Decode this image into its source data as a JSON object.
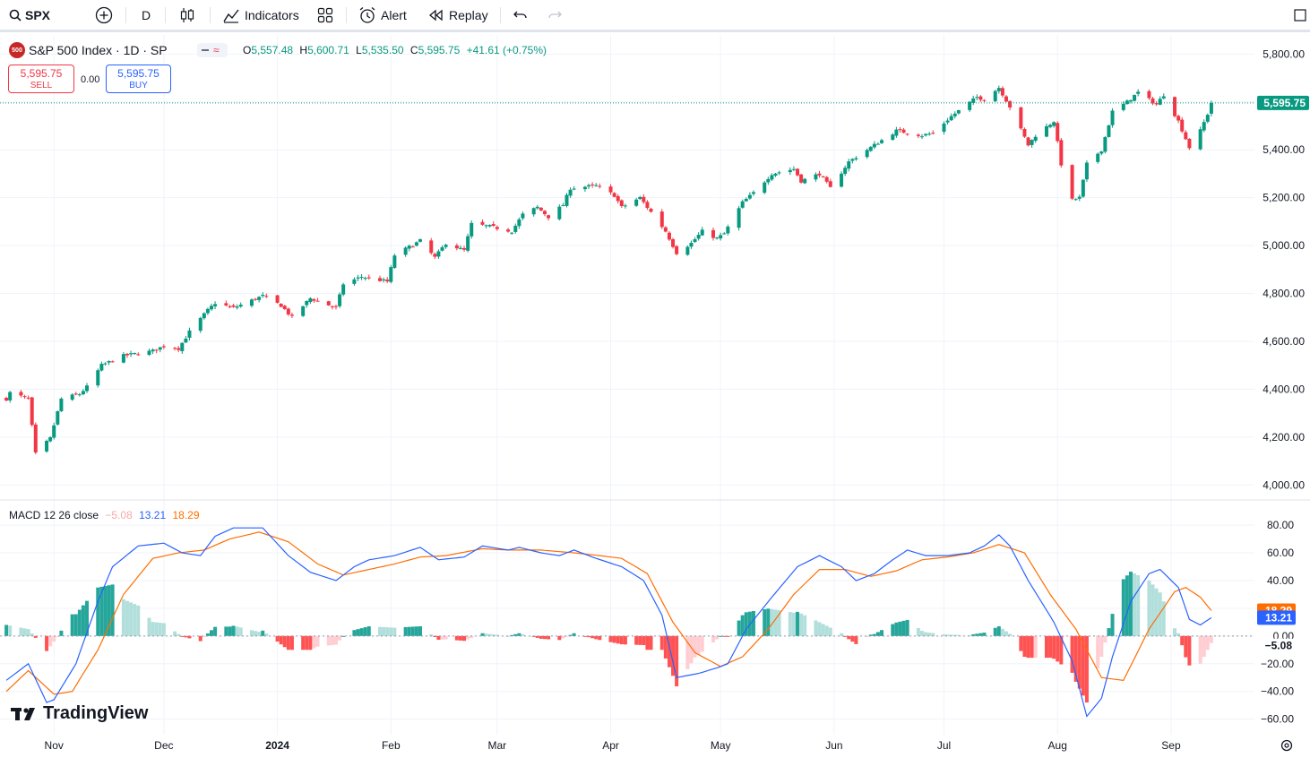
{
  "toolbar": {
    "symbol": "SPX",
    "interval": "D",
    "indicators": "Indicators",
    "alert": "Alert",
    "replay": "Replay"
  },
  "legend": {
    "badge": "500",
    "title": "S&P 500 Index · 1D · SP",
    "o_label": "O",
    "o": "5,557.48",
    "h_label": "H",
    "h": "5,600.71",
    "l_label": "L",
    "l": "5,535.50",
    "c_label": "C",
    "c": "5,595.75",
    "change": "+41.61 (+0.75%)"
  },
  "trade": {
    "sell_price": "5,595.75",
    "sell_label": "SELL",
    "spread": "0.00",
    "buy_price": "5,595.75",
    "buy_label": "BUY"
  },
  "macd_legend": {
    "name": "MACD 12 26 close",
    "hist": "−5.08",
    "macd": "13.21",
    "signal": "18.29"
  },
  "brand": "TradingView",
  "colors": {
    "up": "#089981",
    "down": "#f23645",
    "macd": "#2962ff",
    "signal": "#ff6d00",
    "hist_up_strong": "#26a69a",
    "hist_up_weak": "#b2dfdb",
    "hist_down_strong": "#ff5252",
    "hist_down_weak": "#ffcdd2"
  },
  "chart_data": [
    {
      "type": "candlestick",
      "title": "S&P 500 Index · 1D · SP",
      "y_ticks": [
        "5,800.00",
        "5,600.00",
        "5,400.00",
        "5,200.00",
        "5,000.00",
        "4,800.00",
        "4,600.00",
        "4,400.00",
        "4,200.00",
        "4,000.00"
      ],
      "y_tick_values": [
        5800,
        5600,
        5400,
        5200,
        5000,
        4800,
        4600,
        4400,
        4200,
        4000
      ],
      "ylim": [
        3960,
        5850
      ],
      "x_ticks": [
        "Nov",
        "Dec",
        "2024",
        "Feb",
        "Mar",
        "Apr",
        "May",
        "Jun",
        "Jul",
        "Aug",
        "Sep"
      ],
      "last_price": "5,595.75",
      "last_value": 5595.75,
      "path": [
        [
          "2023-10-19",
          4360
        ],
        [
          "2023-10-20",
          4385
        ],
        [
          "2023-10-25",
          4360
        ],
        [
          "2023-10-27",
          4130
        ],
        [
          "2023-10-31",
          4195
        ],
        [
          "2023-11-03",
          4360
        ],
        [
          "2023-11-08",
          4380
        ],
        [
          "2023-11-10",
          4410
        ],
        [
          "2023-11-14",
          4500
        ],
        [
          "2023-11-20",
          4540
        ],
        [
          "2023-11-28",
          4560
        ],
        [
          "2023-12-01",
          4580
        ],
        [
          "2023-12-05",
          4570
        ],
        [
          "2023-12-08",
          4640
        ],
        [
          "2023-12-13",
          4730
        ],
        [
          "2023-12-15",
          4760
        ],
        [
          "2023-12-20",
          4740
        ],
        [
          "2023-12-28",
          4790
        ],
        [
          "2024-01-02",
          4750
        ],
        [
          "2024-01-05",
          4700
        ],
        [
          "2024-01-10",
          4780
        ],
        [
          "2024-01-17",
          4740
        ],
        [
          "2024-01-19",
          4840
        ],
        [
          "2024-01-24",
          4870
        ],
        [
          "2024-01-31",
          4850
        ],
        [
          "2024-02-02",
          4960
        ],
        [
          "2024-02-09",
          5020
        ],
        [
          "2024-02-13",
          4950
        ],
        [
          "2024-02-16",
          5010
        ],
        [
          "2024-02-21",
          4980
        ],
        [
          "2024-02-23",
          5090
        ],
        [
          "2024-02-28",
          5080
        ],
        [
          "2024-03-05",
          5060
        ],
        [
          "2024-03-08",
          5130
        ],
        [
          "2024-03-12",
          5160
        ],
        [
          "2024-03-15",
          5120
        ],
        [
          "2024-03-19",
          5170
        ],
        [
          "2024-03-21",
          5240
        ],
        [
          "2024-03-28",
          5250
        ],
        [
          "2024-04-02",
          5210
        ],
        [
          "2024-04-04",
          5160
        ],
        [
          "2024-04-09",
          5200
        ],
        [
          "2024-04-12",
          5140
        ],
        [
          "2024-04-16",
          5060
        ],
        [
          "2024-04-19",
          4970
        ],
        [
          "2024-04-23",
          5010
        ],
        [
          "2024-04-26",
          5060
        ],
        [
          "2024-04-30",
          5030
        ],
        [
          "2024-05-02",
          5050
        ],
        [
          "2024-05-07",
          5180
        ],
        [
          "2024-05-10",
          5220
        ],
        [
          "2024-05-15",
          5300
        ],
        [
          "2024-05-21",
          5320
        ],
        [
          "2024-05-23",
          5270
        ],
        [
          "2024-05-28",
          5300
        ],
        [
          "2024-05-31",
          5240
        ],
        [
          "2024-06-05",
          5350
        ],
        [
          "2024-06-12",
          5420
        ],
        [
          "2024-06-14",
          5440
        ],
        [
          "2024-06-18",
          5480
        ],
        [
          "2024-06-25",
          5460
        ],
        [
          "2024-06-28",
          5470
        ],
        [
          "2024-07-03",
          5540
        ],
        [
          "2024-07-10",
          5620
        ],
        [
          "2024-07-12",
          5610
        ],
        [
          "2024-07-16",
          5660
        ],
        [
          "2024-07-19",
          5580
        ],
        [
          "2024-07-24",
          5420
        ],
        [
          "2024-07-26",
          5460
        ],
        [
          "2024-07-31",
          5520
        ],
        [
          "2024-08-02",
          5340
        ],
        [
          "2024-08-05",
          5190
        ],
        [
          "2024-08-07",
          5200
        ],
        [
          "2024-08-09",
          5340
        ],
        [
          "2024-08-13",
          5400
        ],
        [
          "2024-08-16",
          5560
        ],
        [
          "2024-08-20",
          5600
        ],
        [
          "2024-08-23",
          5640
        ],
        [
          "2024-08-28",
          5590
        ],
        [
          "2024-08-30",
          5630
        ],
        [
          "2024-09-03",
          5520
        ],
        [
          "2024-09-06",
          5410
        ],
        [
          "2024-09-09",
          5480
        ],
        [
          "2024-09-11",
          5550
        ],
        [
          "2024-09-12",
          5595.75
        ]
      ]
    },
    {
      "type": "macd",
      "title": "MACD 12 26 close",
      "y_ticks": [
        "80.00",
        "60.00",
        "40.00",
        "20.00",
        "0.00",
        "−20.00",
        "−40.00",
        "−60.00"
      ],
      "y_tick_values": [
        80,
        60,
        40,
        20,
        0,
        -20,
        -40,
        -60
      ],
      "ylim": [
        -68,
        93
      ],
      "macd_last": "13.21",
      "macd_last_value": 13.21,
      "signal_last": "18.29",
      "signal_last_value": 18.29,
      "hist_last": "−5.08",
      "hist_last_value": -5.08,
      "macd_path": [
        [
          "2023-10-19",
          -32
        ],
        [
          "2023-10-25",
          -20
        ],
        [
          "2023-10-30",
          -48
        ],
        [
          "2023-11-01",
          -46
        ],
        [
          "2023-11-07",
          -20
        ],
        [
          "2023-11-13",
          25
        ],
        [
          "2023-11-17",
          50
        ],
        [
          "2023-11-24",
          65
        ],
        [
          "2023-12-01",
          67
        ],
        [
          "2023-12-06",
          60
        ],
        [
          "2023-12-11",
          58
        ],
        [
          "2023-12-15",
          72
        ],
        [
          "2023-12-20",
          78
        ],
        [
          "2023-12-28",
          78
        ],
        [
          "2024-01-04",
          58
        ],
        [
          "2024-01-10",
          46
        ],
        [
          "2024-01-17",
          40
        ],
        [
          "2024-01-22",
          50
        ],
        [
          "2024-01-26",
          55
        ],
        [
          "2024-02-02",
          58
        ],
        [
          "2024-02-09",
          64
        ],
        [
          "2024-02-14",
          55
        ],
        [
          "2024-02-21",
          57
        ],
        [
          "2024-02-26",
          65
        ],
        [
          "2024-03-04",
          62
        ],
        [
          "2024-03-07",
          64
        ],
        [
          "2024-03-13",
          60
        ],
        [
          "2024-03-18",
          58
        ],
        [
          "2024-03-22",
          62
        ],
        [
          "2024-03-28",
          56
        ],
        [
          "2024-04-04",
          50
        ],
        [
          "2024-04-10",
          40
        ],
        [
          "2024-04-15",
          15
        ],
        [
          "2024-04-19",
          -30
        ],
        [
          "2024-04-25",
          -27
        ],
        [
          "2024-04-30",
          -23
        ],
        [
          "2024-05-03",
          -20
        ],
        [
          "2024-05-08",
          5
        ],
        [
          "2024-05-15",
          28
        ],
        [
          "2024-05-22",
          50
        ],
        [
          "2024-05-28",
          58
        ],
        [
          "2024-06-03",
          50
        ],
        [
          "2024-06-07",
          40
        ],
        [
          "2024-06-12",
          45
        ],
        [
          "2024-06-17",
          55
        ],
        [
          "2024-06-21",
          62
        ],
        [
          "2024-06-26",
          58
        ],
        [
          "2024-07-02",
          58
        ],
        [
          "2024-07-08",
          60
        ],
        [
          "2024-07-12",
          65
        ],
        [
          "2024-07-16",
          73
        ],
        [
          "2024-07-19",
          65
        ],
        [
          "2024-07-24",
          40
        ],
        [
          "2024-07-31",
          10
        ],
        [
          "2024-08-05",
          -18
        ],
        [
          "2024-08-09",
          -58
        ],
        [
          "2024-08-13",
          -45
        ],
        [
          "2024-08-16",
          -15
        ],
        [
          "2024-08-21",
          25
        ],
        [
          "2024-08-26",
          45
        ],
        [
          "2024-08-29",
          48
        ],
        [
          "2024-09-03",
          35
        ],
        [
          "2024-09-06",
          12
        ],
        [
          "2024-09-09",
          8
        ],
        [
          "2024-09-12",
          13.21
        ]
      ],
      "signal_path": [
        [
          "2023-10-19",
          -40
        ],
        [
          "2023-10-25",
          -25
        ],
        [
          "2023-11-01",
          -42
        ],
        [
          "2023-11-06",
          -40
        ],
        [
          "2023-11-13",
          -10
        ],
        [
          "2023-11-20",
          30
        ],
        [
          "2023-11-28",
          56
        ],
        [
          "2023-12-05",
          60
        ],
        [
          "2023-12-12",
          62
        ],
        [
          "2023-12-19",
          70
        ],
        [
          "2023-12-27",
          75
        ],
        [
          "2024-01-04",
          68
        ],
        [
          "2024-01-12",
          52
        ],
        [
          "2024-01-19",
          44
        ],
        [
          "2024-01-26",
          48
        ],
        [
          "2024-02-02",
          52
        ],
        [
          "2024-02-09",
          57
        ],
        [
          "2024-02-16",
          58
        ],
        [
          "2024-02-26",
          63
        ],
        [
          "2024-03-04",
          62
        ],
        [
          "2024-03-13",
          62
        ],
        [
          "2024-03-22",
          60
        ],
        [
          "2024-03-29",
          58
        ],
        [
          "2024-04-04",
          56
        ],
        [
          "2024-04-11",
          45
        ],
        [
          "2024-04-18",
          10
        ],
        [
          "2024-04-24",
          -12
        ],
        [
          "2024-05-01",
          -22
        ],
        [
          "2024-05-07",
          -15
        ],
        [
          "2024-05-14",
          5
        ],
        [
          "2024-05-21",
          30
        ],
        [
          "2024-05-28",
          48
        ],
        [
          "2024-06-04",
          48
        ],
        [
          "2024-06-11",
          43
        ],
        [
          "2024-06-18",
          47
        ],
        [
          "2024-06-25",
          55
        ],
        [
          "2024-07-02",
          57
        ],
        [
          "2024-07-09",
          60
        ],
        [
          "2024-07-16",
          66
        ],
        [
          "2024-07-23",
          60
        ],
        [
          "2024-07-30",
          30
        ],
        [
          "2024-08-06",
          5
        ],
        [
          "2024-08-13",
          -30
        ],
        [
          "2024-08-19",
          -32
        ],
        [
          "2024-08-26",
          5
        ],
        [
          "2024-09-02",
          32
        ],
        [
          "2024-09-05",
          35
        ],
        [
          "2024-09-09",
          28
        ],
        [
          "2024-09-12",
          18.29
        ]
      ]
    }
  ]
}
